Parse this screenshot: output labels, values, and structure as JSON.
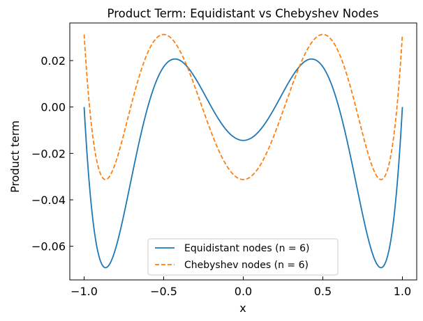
{
  "chart_data": {
    "type": "line",
    "title": "Product Term: Equidistant vs Chebyshev Nodes",
    "xlabel": "x",
    "ylabel": "Product term",
    "xlim": [
      -1.09,
      1.09
    ],
    "ylim": [
      -0.0745,
      0.0362
    ],
    "xticks": [
      -1.0,
      -0.5,
      0.0,
      0.5,
      1.0
    ],
    "xtick_labels": [
      "−1.0",
      "−0.5",
      "0.0",
      "0.5",
      "1.0"
    ],
    "yticks": [
      -0.06,
      -0.04,
      -0.02,
      0.0,
      0.02
    ],
    "ytick_labels": [
      "−0.06",
      "−0.04",
      "−0.02",
      "0.00",
      "0.02"
    ],
    "legend_position": "bottom-center",
    "series": [
      {
        "name": "Equidistant nodes (n = 6)",
        "color": "#1f77b4",
        "linestyle": "solid",
        "nodes": [
          -1.0,
          -0.6,
          -0.2,
          0.2,
          0.6,
          1.0
        ]
      },
      {
        "name": "Chebyshev nodes (n = 6)",
        "color": "#ff7f0e",
        "linestyle": "dashed",
        "nodes": [
          -0.9659258,
          -0.7071068,
          -0.258819,
          0.258819,
          0.7071068,
          0.9659258
        ]
      }
    ]
  }
}
